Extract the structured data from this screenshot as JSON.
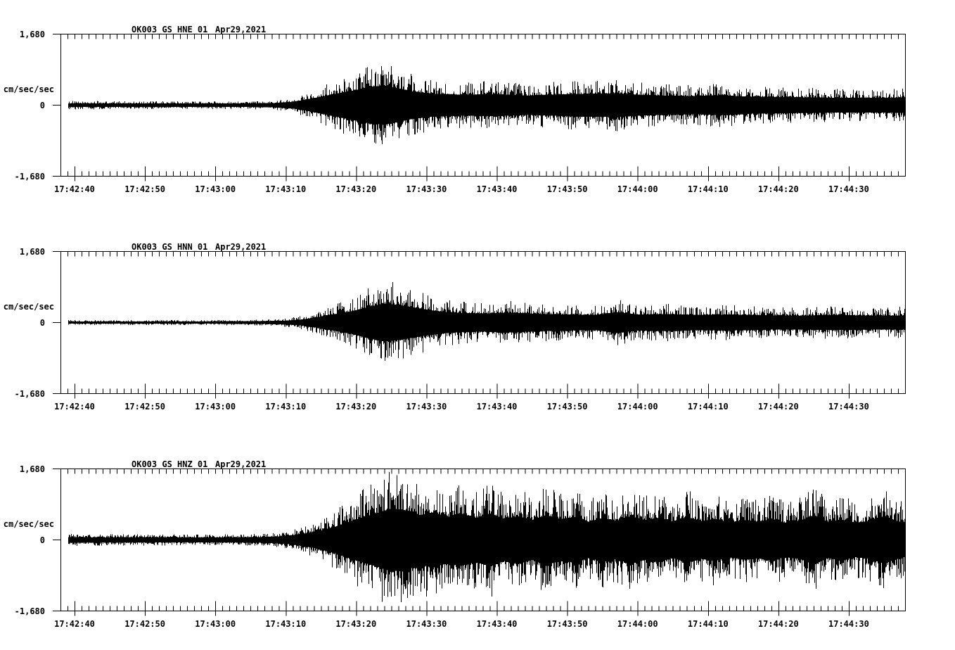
{
  "page": {
    "background": "#ffffff",
    "foreground": "#000000",
    "description": "Three-channel strong-motion seismogram display, station OK003, Apr 29 2021"
  },
  "chart_data": [
    {
      "type": "line",
      "kind": "seismogram",
      "station": "OK003_GS_HNE_01",
      "date": "Apr29,2021",
      "ylabel": "cm/sec/sec",
      "ylim": [
        -1.68,
        1.68
      ],
      "y_tick_labels": [
        "1,680",
        "0",
        "-1,680"
      ],
      "x_start": "17:42:38",
      "x_end": "17:44:38",
      "x_tick_interval_sec": 10,
      "x_minor_tick_sec": 1,
      "x_tick_labels": [
        "17:42:40",
        "17:42:50",
        "17:43:00",
        "17:43:10",
        "17:43:20",
        "17:43:30",
        "17:43:40",
        "17:43:50",
        "17:44:00",
        "17:44:10",
        "17:44:20",
        "17:44:30"
      ],
      "envelope": {
        "units": "cm/sec/sec peak amplitude vs seconds after 17:42:38",
        "t_sec": [
          0,
          25,
          30,
          33,
          35,
          37,
          39,
          42,
          44,
          46,
          48,
          50,
          53,
          57,
          62,
          66,
          70,
          74,
          79,
          82,
          86,
          90,
          94,
          98,
          103,
          108,
          113,
          120
        ],
        "amp": [
          0.1,
          0.09,
          0.11,
          0.18,
          0.3,
          0.45,
          0.6,
          0.8,
          0.98,
          1.02,
          0.88,
          0.72,
          0.6,
          0.55,
          0.58,
          0.5,
          0.55,
          0.6,
          0.62,
          0.55,
          0.5,
          0.48,
          0.52,
          0.45,
          0.42,
          0.4,
          0.38,
          0.4
        ]
      }
    },
    {
      "type": "line",
      "kind": "seismogram",
      "station": "OK003_GS_HNN_01",
      "date": "Apr29,2021",
      "ylabel": "cm/sec/sec",
      "ylim": [
        -1.68,
        1.68
      ],
      "y_tick_labels": [
        "1,680",
        "0",
        "-1,680"
      ],
      "x_start": "17:42:38",
      "x_end": "17:44:38",
      "x_tick_interval_sec": 10,
      "x_minor_tick_sec": 1,
      "x_tick_labels": [
        "17:42:40",
        "17:42:50",
        "17:43:00",
        "17:43:10",
        "17:43:20",
        "17:43:30",
        "17:43:40",
        "17:43:50",
        "17:44:00",
        "17:44:10",
        "17:44:20",
        "17:44:30"
      ],
      "envelope": {
        "units": "cm/sec/sec peak amplitude vs seconds after 17:42:38",
        "t_sec": [
          0,
          20,
          28,
          32,
          34,
          36,
          38,
          40,
          42,
          44,
          46,
          48,
          50,
          52,
          54,
          57,
          60,
          64,
          68,
          72,
          76,
          79,
          82,
          86,
          90,
          95,
          100,
          105,
          110,
          115,
          120
        ],
        "amp": [
          0.06,
          0.06,
          0.07,
          0.1,
          0.15,
          0.25,
          0.38,
          0.5,
          0.65,
          0.85,
          1.0,
          0.92,
          0.8,
          0.68,
          0.58,
          0.5,
          0.48,
          0.52,
          0.45,
          0.42,
          0.4,
          0.55,
          0.42,
          0.45,
          0.4,
          0.42,
          0.38,
          0.36,
          0.4,
          0.36,
          0.38
        ]
      }
    },
    {
      "type": "line",
      "kind": "seismogram",
      "station": "OK003_GS_HNZ_01",
      "date": "Apr29,2021",
      "ylabel": "cm/sec/sec",
      "ylim": [
        -1.68,
        1.68
      ],
      "y_tick_labels": [
        "1,680",
        "0",
        "-1,680"
      ],
      "x_start": "17:42:38",
      "x_end": "17:44:38",
      "x_tick_interval_sec": 10,
      "x_minor_tick_sec": 1,
      "x_tick_labels": [
        "17:42:40",
        "17:42:50",
        "17:43:00",
        "17:43:10",
        "17:43:20",
        "17:43:30",
        "17:43:40",
        "17:43:50",
        "17:44:00",
        "17:44:10",
        "17:44:20",
        "17:44:30"
      ],
      "envelope": {
        "units": "cm/sec/sec peak amplitude vs seconds after 17:42:38",
        "t_sec": [
          0,
          20,
          28,
          31,
          33,
          35,
          37,
          39,
          41,
          43,
          45,
          47,
          49,
          51,
          53,
          55,
          57,
          59,
          61,
          63,
          65,
          67,
          69,
          71,
          73,
          75,
          77,
          79,
          81,
          83,
          85,
          87,
          89,
          91,
          93,
          95,
          97,
          99,
          101,
          103,
          105,
          107,
          109,
          111,
          113,
          115,
          117,
          119,
          120
        ],
        "amp": [
          0.14,
          0.13,
          0.14,
          0.18,
          0.25,
          0.35,
          0.5,
          0.7,
          0.95,
          1.2,
          1.4,
          1.66,
          1.55,
          1.3,
          1.45,
          1.2,
          1.35,
          1.15,
          1.4,
          1.1,
          1.25,
          1.05,
          1.3,
          1.1,
          1.2,
          0.95,
          1.15,
          1.0,
          1.25,
          1.05,
          1.15,
          0.95,
          1.2,
          1.0,
          1.1,
          0.9,
          1.05,
          0.95,
          1.1,
          0.9,
          1.0,
          1.3,
          0.95,
          1.05,
          0.9,
          1.0,
          1.25,
          0.95,
          0.9
        ]
      }
    }
  ]
}
